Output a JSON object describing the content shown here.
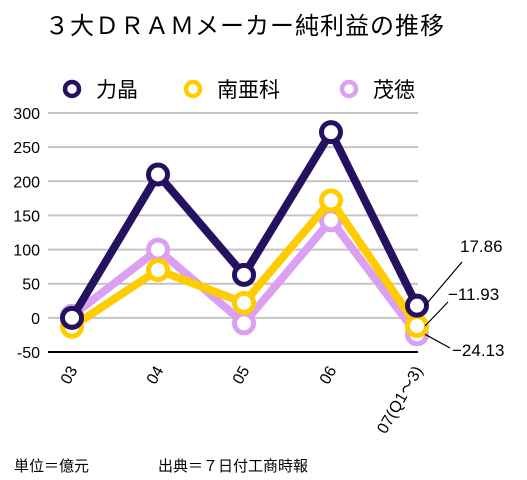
{
  "chart_data": {
    "type": "line",
    "title": "３大ＤＲＡＭメーカー純利益の推移",
    "categories": [
      "03",
      "04",
      "05",
      "06",
      "07(Q1〜3)"
    ],
    "ylim": [
      -50,
      300
    ],
    "yticks": [
      -50,
      0,
      50,
      100,
      150,
      200,
      250,
      300
    ],
    "grid": true,
    "legend_position": "top",
    "series": [
      {
        "name": "力晶",
        "color": "#24115f",
        "values": [
          0,
          210,
          63,
          272,
          17.86
        ]
      },
      {
        "name": "南亜科",
        "color": "#ffcc00",
        "values": [
          -13,
          70,
          22,
          172,
          -11.93
        ]
      },
      {
        "name": "茂徳",
        "color": "#dca0f2",
        "values": [
          3,
          100,
          -8,
          143,
          -24.13
        ]
      }
    ],
    "annotations": [
      "17.86",
      "−11.93",
      "−24.13"
    ]
  },
  "footer": {
    "unit": "単位＝億元",
    "source": "出典＝７日付工商時報"
  }
}
